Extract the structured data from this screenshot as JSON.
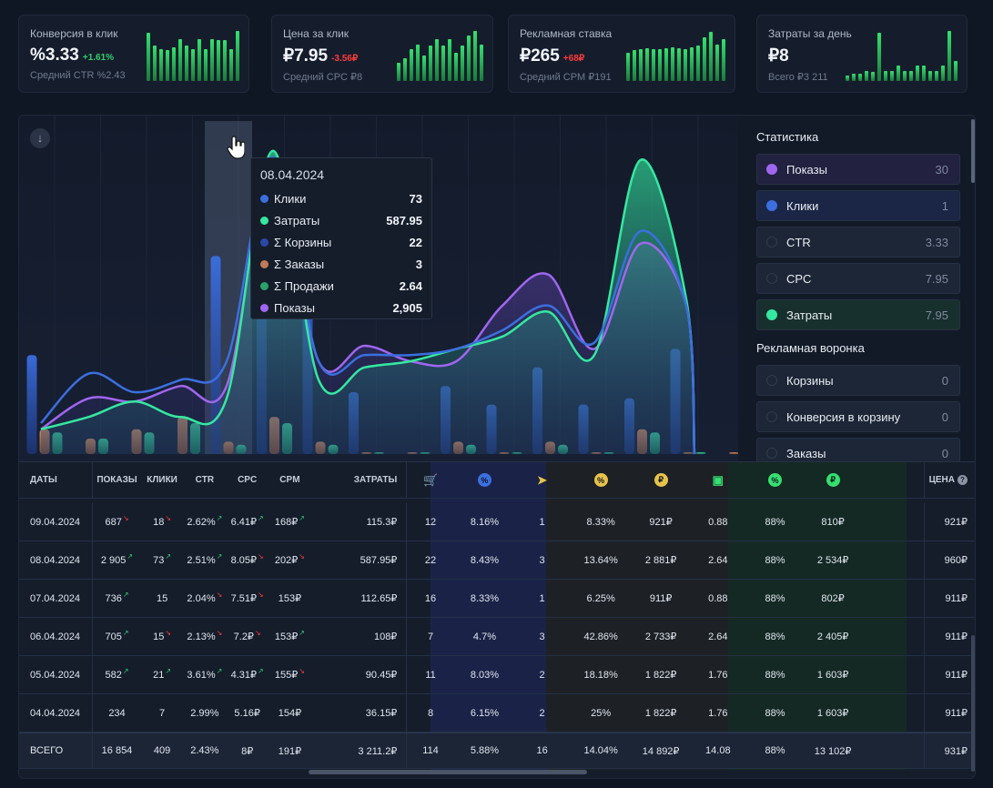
{
  "kpis": [
    {
      "title": "Конверсия в клик",
      "value": "%3.33",
      "delta": "+1.61%",
      "delta_dir": "up",
      "sub": "Средний CTR %2.43",
      "bars": [
        0.95,
        0.7,
        0.62,
        0.6,
        0.66,
        0.82,
        0.7,
        0.62,
        0.82,
        0.62,
        0.82,
        0.8,
        0.8,
        0.62,
        0.98
      ]
    },
    {
      "title": "Цена за клик",
      "value": "₽7.95",
      "delta": "-3.56₽",
      "delta_dir": "down",
      "sub": "Средний CPC ₽8",
      "bars": [
        0.35,
        0.45,
        0.62,
        0.72,
        0.5,
        0.7,
        0.82,
        0.7,
        0.82,
        0.55,
        0.7,
        0.9,
        0.98,
        0.72
      ]
    },
    {
      "title": "Рекламная ставка",
      "value": "₽265",
      "delta": "+68₽",
      "delta_dir": "down",
      "sub": "Средний CPM ₽191",
      "bars": [
        0.55,
        0.6,
        0.62,
        0.65,
        0.62,
        0.62,
        0.64,
        0.66,
        0.65,
        0.62,
        0.66,
        0.7,
        0.85,
        0.96,
        0.72,
        0.82
      ]
    },
    {
      "title": "Затраты за день",
      "value": "₽8",
      "delta": "",
      "delta_dir": "up",
      "sub": "Всего ₽3 211",
      "bars": [
        0.1,
        0.15,
        0.15,
        0.2,
        0.18,
        0.95,
        0.2,
        0.2,
        0.3,
        0.2,
        0.2,
        0.3,
        0.3,
        0.2,
        0.2,
        0.3,
        0.98,
        0.4
      ]
    }
  ],
  "chart": {
    "download_icon": "arrow-down-icon",
    "tooltip": {
      "date": "08.04.2024",
      "rows": [
        {
          "label": "Клики",
          "value": "73",
          "color": "#3b6fe0"
        },
        {
          "label": "Затраты",
          "value": "587.95",
          "color": "#35e8a0"
        },
        {
          "label": "Σ Корзины",
          "value": "22",
          "color": "#2a48a8"
        },
        {
          "label": "Σ Заказы",
          "value": "3",
          "color": "#c07a55"
        },
        {
          "label": "Σ Продажи",
          "value": "2.64",
          "color": "#2aa36a"
        },
        {
          "label": "Показы",
          "value": "2,905",
          "color": "#a066f0"
        }
      ]
    }
  },
  "chart_data": {
    "type": "bar",
    "note": "Combined bars (carts/orders/sales) and smoothed lines (impressions, clicks, spend) per day; values are relative heights read from the plot.",
    "bar_groups": [
      {
        "cart": 0.32,
        "orders": 0.08,
        "sales": 0.07
      },
      {
        "cart": 0.0,
        "orders": 0.05,
        "sales": 0.05
      },
      {
        "cart": 0.0,
        "orders": 0.08,
        "sales": 0.07
      },
      {
        "cart": 0.0,
        "orders": 0.12,
        "sales": 0.1
      },
      {
        "cart": 0.64,
        "orders": 0.04,
        "sales": 0.03
      },
      {
        "cart": 0.88,
        "orders": 0.12,
        "sales": 0.1
      },
      {
        "cart": 0.62,
        "orders": 0.04,
        "sales": 0.03
      },
      {
        "cart": 0.2,
        "orders": 0.0,
        "sales": 0.0
      },
      {
        "cart": 0.0,
        "orders": 0.0,
        "sales": 0.0
      },
      {
        "cart": 0.22,
        "orders": 0.04,
        "sales": 0.03
      },
      {
        "cart": 0.16,
        "orders": 0.0,
        "sales": 0.0
      },
      {
        "cart": 0.28,
        "orders": 0.04,
        "sales": 0.03
      },
      {
        "cart": 0.16,
        "orders": 0.0,
        "sales": 0.0
      },
      {
        "cart": 0.18,
        "orders": 0.08,
        "sales": 0.07
      },
      {
        "cart": 0.34,
        "orders": 0.0,
        "sales": 0.0
      },
      {
        "cart": 0.0,
        "orders": 0.0,
        "sales": 0.0
      }
    ],
    "series": [
      {
        "name": "Показы",
        "color": "#a066f0",
        "values": [
          0.08,
          0.18,
          0.17,
          0.22,
          0.22,
          0.95,
          0.3,
          0.35,
          0.3,
          0.3,
          0.48,
          0.58,
          0.34,
          0.68,
          0.48,
          0.0
        ]
      },
      {
        "name": "Затраты",
        "color": "#35e8a0",
        "values": [
          0.08,
          0.12,
          0.17,
          0.12,
          0.18,
          0.98,
          0.24,
          0.28,
          0.3,
          0.34,
          0.38,
          0.46,
          0.32,
          0.95,
          0.5,
          0.0
        ]
      },
      {
        "name": "Клики",
        "color": "#3b6fe0",
        "values": [
          0.1,
          0.26,
          0.2,
          0.24,
          0.3,
          0.96,
          0.3,
          0.32,
          0.32,
          0.34,
          0.4,
          0.48,
          0.36,
          0.72,
          0.48,
          0.0
        ]
      }
    ]
  },
  "side": {
    "section1": "Статистика",
    "items1": [
      {
        "label": "Показы",
        "value": "30",
        "dot": "#a066f0",
        "bg": "#22213f",
        "active": true
      },
      {
        "label": "Клики",
        "value": "1",
        "dot": "#3b6fe0",
        "bg": "#1b2646",
        "active": true
      },
      {
        "label": "CTR",
        "value": "3.33",
        "dot": "",
        "bg": "#1d2636",
        "active": false
      },
      {
        "label": "CPC",
        "value": "7.95",
        "dot": "",
        "bg": "#1d2636",
        "active": false
      },
      {
        "label": "Затраты",
        "value": "7.95",
        "dot": "#35e8a0",
        "bg": "#18302d",
        "active": true
      }
    ],
    "section2": "Рекламная воронка",
    "items2": [
      {
        "label": "Корзины",
        "value": "0",
        "dot": "",
        "bg": "#1d2636",
        "active": false
      },
      {
        "label": "Конверсия в корзину",
        "value": "0",
        "dot": "",
        "bg": "#1d2636",
        "active": false
      },
      {
        "label": "Заказы",
        "value": "0",
        "dot": "",
        "bg": "#1d2636",
        "active": false
      }
    ]
  },
  "table": {
    "headers": [
      "ДАТЫ",
      "ПОКАЗЫ",
      "КЛИКИ",
      "CTR",
      "CPC",
      "CPM",
      "ЗАТРАТЫ",
      "",
      "",
      "",
      "",
      "",
      "",
      "",
      "",
      "",
      "ЦЕНА"
    ],
    "header_icons": [
      {
        "name": "cart-icon",
        "glyph": "🛒",
        "color": "#3b6fe0",
        "bg": ""
      },
      {
        "name": "percent-blue-icon",
        "glyph": "%",
        "color": "#0f1624",
        "bg": "#3b6fe0"
      },
      {
        "name": "send-icon",
        "glyph": "➤",
        "color": "#e8c34a",
        "bg": ""
      },
      {
        "name": "percent-yellow-icon",
        "glyph": "%",
        "color": "#0f1624",
        "bg": "#e8c34a"
      },
      {
        "name": "ruble-yellow-icon",
        "glyph": "₽",
        "color": "#0f1624",
        "bg": "#e8c34a"
      },
      {
        "name": "cash-icon",
        "glyph": "▣",
        "color": "#35e06f",
        "bg": ""
      },
      {
        "name": "percent-green-icon",
        "glyph": "%",
        "color": "#0f1624",
        "bg": "#35e06f"
      },
      {
        "name": "ruble-green-icon",
        "glyph": "₽",
        "color": "#0f1624",
        "bg": "#35e06f"
      }
    ],
    "help_icon": "?",
    "rows": [
      [
        "09.04.2024",
        "687",
        "18",
        "2.62%",
        "6.41₽",
        "168₽",
        "115.3₽",
        "12",
        "8.16%",
        "1",
        "8.33%",
        "921₽",
        "0.88",
        "88%",
        "810₽",
        "921₽"
      ],
      [
        "08.04.2024",
        "2 905",
        "73",
        "2.51%",
        "8.05₽",
        "202₽",
        "587.95₽",
        "22",
        "8.43%",
        "3",
        "13.64%",
        "2 881₽",
        "2.64",
        "88%",
        "2 534₽",
        "960₽"
      ],
      [
        "07.04.2024",
        "736",
        "15",
        "2.04%",
        "7.51₽",
        "153₽",
        "112.65₽",
        "16",
        "8.33%",
        "1",
        "6.25%",
        "911₽",
        "0.88",
        "88%",
        "802₽",
        "911₽"
      ],
      [
        "06.04.2024",
        "705",
        "15",
        "2.13%",
        "7.2₽",
        "153₽",
        "108₽",
        "7",
        "4.7%",
        "3",
        "42.86%",
        "2 733₽",
        "2.64",
        "88%",
        "2 405₽",
        "911₽"
      ],
      [
        "05.04.2024",
        "582",
        "21",
        "3.61%",
        "4.31₽",
        "155₽",
        "90.45₽",
        "11",
        "8.03%",
        "2",
        "18.18%",
        "1 822₽",
        "1.76",
        "88%",
        "1 603₽",
        "911₽"
      ],
      [
        "04.04.2024",
        "234",
        "7",
        "2.99%",
        "5.16₽",
        "154₽",
        "36.15₽",
        "8",
        "6.15%",
        "2",
        "25%",
        "1 822₽",
        "1.76",
        "88%",
        "1 603₽",
        "911₽"
      ]
    ],
    "arrows": [
      [
        "",
        "r",
        "r",
        "g",
        "g",
        "g",
        "",
        "",
        "",
        "",
        "",
        "",
        "",
        "",
        "",
        ""
      ],
      [
        "",
        "g",
        "g",
        "g",
        "r",
        "r",
        "",
        "",
        "",
        "",
        "",
        "",
        "",
        "",
        "",
        ""
      ],
      [
        "",
        "g",
        "",
        "r",
        "r",
        "",
        "",
        "",
        "",
        "",
        "",
        "",
        "",
        "",
        "",
        ""
      ],
      [
        "",
        "g",
        "r",
        "r",
        "r",
        "g",
        "",
        "",
        "",
        "",
        "",
        "",
        "",
        "",
        "",
        ""
      ],
      [
        "",
        "g",
        "g",
        "g",
        "g",
        "r",
        "",
        "",
        "",
        "",
        "",
        "",
        "",
        "",
        "",
        ""
      ],
      [
        "",
        "",
        "",
        "",
        "",
        "",
        "",
        "",
        "",
        "",
        "",
        "",
        "",
        "",
        "",
        ""
      ]
    ],
    "total": [
      "ВСЕГО",
      "16 854",
      "409",
      "2.43%",
      "8₽",
      "191₽",
      "3 211.2₽",
      "114",
      "5.88%",
      "16",
      "14.04%",
      "14 892₽",
      "14.08",
      "88%",
      "13 102₽",
      "931₽"
    ]
  }
}
